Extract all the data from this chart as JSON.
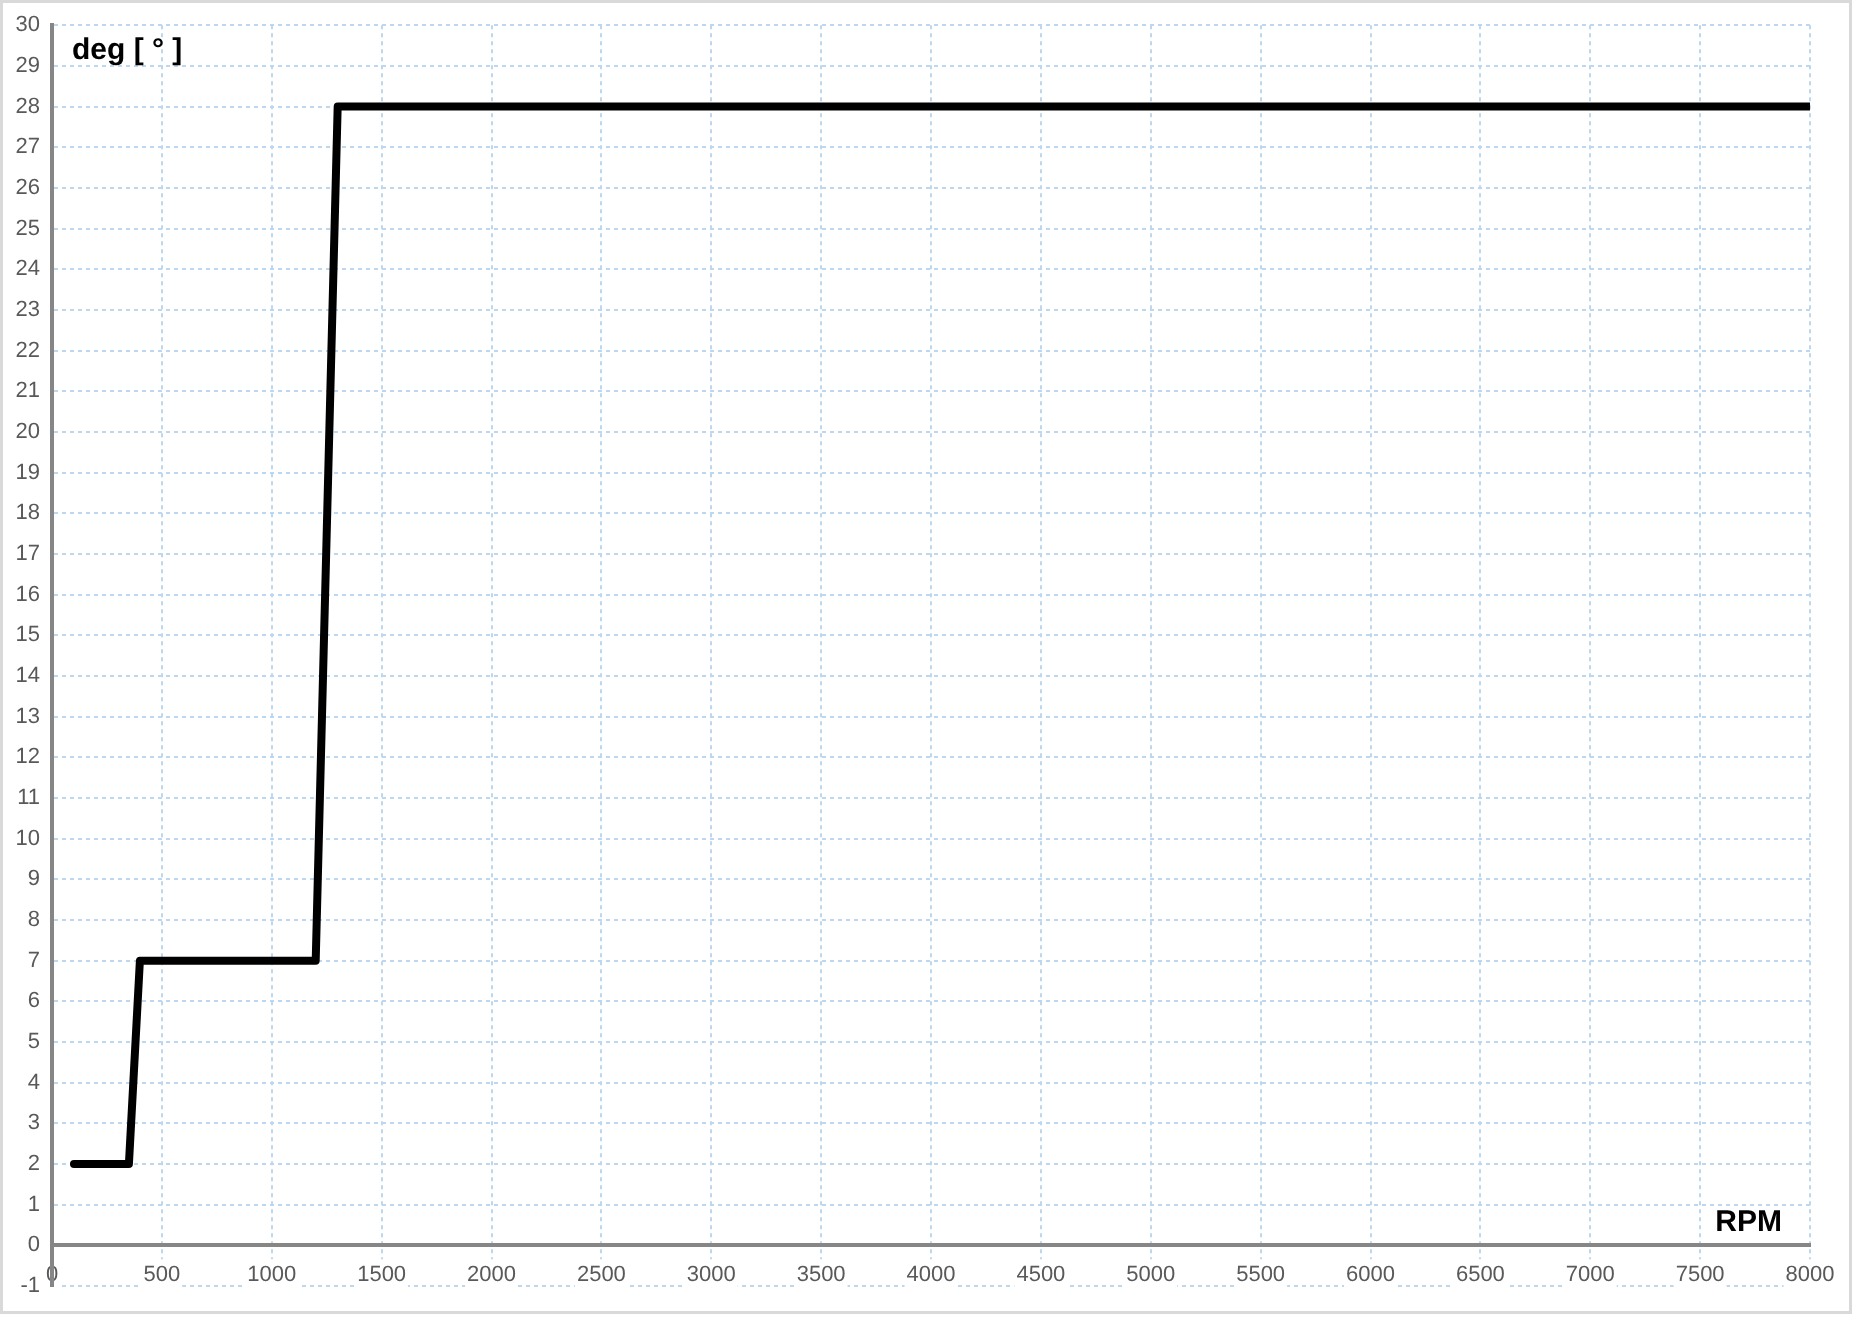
{
  "chart_data": {
    "type": "line",
    "xlabel": "RPM",
    "ylabel": "deg [ ° ]",
    "x": [
      100,
      350,
      400,
      1200,
      1300,
      8000
    ],
    "series": [
      {
        "color": "#000000",
        "values": [
          2,
          2,
          7,
          7,
          28,
          28
        ]
      }
    ],
    "xlim": [
      0,
      8000
    ],
    "xticks": [
      0,
      500,
      1000,
      1500,
      2000,
      2500,
      3000,
      3500,
      4000,
      4500,
      5000,
      5500,
      6000,
      6500,
      7000,
      7500,
      8000
    ],
    "ylim": [
      -1,
      30
    ],
    "yticks": [
      -1,
      0,
      1,
      2,
      3,
      4,
      5,
      6,
      7,
      8,
      9,
      10,
      11,
      12,
      13,
      14,
      15,
      16,
      17,
      18,
      19,
      20,
      21,
      22,
      23,
      24,
      25,
      26,
      27,
      28,
      29,
      30
    ],
    "grid": true
  }
}
